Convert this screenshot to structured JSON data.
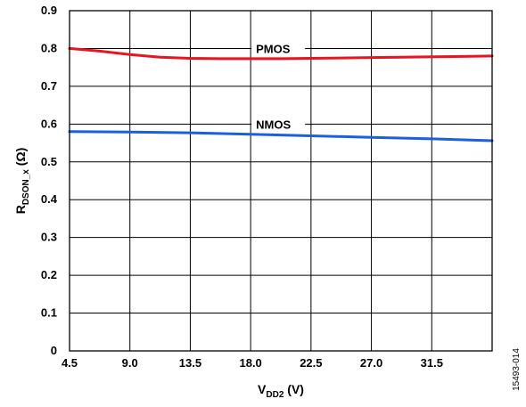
{
  "chart_data": {
    "type": "line",
    "title": "",
    "xlabel": {
      "main": "V",
      "sub": "DD2",
      "unit": " (V)"
    },
    "ylabel": {
      "main": "R",
      "sub": "DSON_x",
      "unit": " (Ω)"
    },
    "xlim": [
      4.5,
      36.0
    ],
    "ylim": [
      0,
      0.9
    ],
    "xticks": [
      4.5,
      9.0,
      13.5,
      18.0,
      22.5,
      27.0,
      31.5
    ],
    "xtick_labels": [
      "4.5",
      "9.0",
      "13.5",
      "18.0",
      "22.5",
      "27.0",
      "31.5"
    ],
    "yticks": [
      0,
      0.1,
      0.2,
      0.3,
      0.4,
      0.5,
      0.6,
      0.7,
      0.8,
      0.9
    ],
    "ytick_labels": [
      "0",
      "0.1",
      "0.2",
      "0.3",
      "0.4",
      "0.5",
      "0.6",
      "0.7",
      "0.8",
      "0.9"
    ],
    "grid": true,
    "legend": "inline labels",
    "series": [
      {
        "name": "PMOS",
        "color": "#e8141e",
        "x": [
          4.5,
          6.75,
          9.0,
          11.25,
          13.5,
          15.75,
          18.0,
          20.25,
          22.5,
          24.75,
          27.0,
          29.25,
          31.5,
          33.75,
          36.0
        ],
        "y": [
          0.8,
          0.793,
          0.784,
          0.777,
          0.774,
          0.773,
          0.773,
          0.773,
          0.774,
          0.775,
          0.776,
          0.777,
          0.778,
          0.779,
          0.78
        ]
      },
      {
        "name": "NMOS",
        "color": "#1a5fe0",
        "x": [
          4.5,
          9.0,
          13.5,
          18.0,
          22.5,
          27.0,
          31.5,
          36.0
        ],
        "y": [
          0.58,
          0.579,
          0.577,
          0.573,
          0.569,
          0.565,
          0.561,
          0.556
        ]
      }
    ]
  },
  "figure_id": "15493-014"
}
